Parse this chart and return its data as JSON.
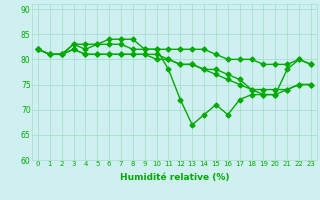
{
  "xlabel": "Humidité relative (%)",
  "xlim": [
    -0.5,
    23.5
  ],
  "ylim": [
    60,
    91
  ],
  "yticks": [
    60,
    65,
    70,
    75,
    80,
    85,
    90
  ],
  "xticks": [
    0,
    1,
    2,
    3,
    4,
    5,
    6,
    7,
    8,
    9,
    10,
    11,
    12,
    13,
    14,
    15,
    16,
    17,
    18,
    19,
    20,
    21,
    22,
    23
  ],
  "background_color": "#cff0f0",
  "grid_color": "#aaddcc",
  "line_color": "#00aa00",
  "marker": "D",
  "markersize": 2.5,
  "linewidth": 1.0,
  "lines": [
    [
      82,
      81,
      81,
      83,
      82,
      83,
      84,
      84,
      84,
      82,
      82,
      78,
      72,
      67,
      69,
      71,
      69,
      72,
      73,
      73,
      73,
      78,
      80,
      79
    ],
    [
      82,
      81,
      81,
      83,
      83,
      83,
      83,
      83,
      82,
      82,
      82,
      82,
      82,
      82,
      82,
      81,
      80,
      80,
      80,
      79,
      79,
      79,
      80,
      79
    ],
    [
      82,
      81,
      81,
      82,
      81,
      81,
      81,
      81,
      81,
      81,
      80,
      80,
      79,
      79,
      78,
      77,
      76,
      75,
      74,
      74,
      74,
      74,
      75,
      75
    ],
    [
      82,
      81,
      81,
      82,
      81,
      81,
      81,
      81,
      81,
      81,
      81,
      80,
      79,
      79,
      78,
      78,
      77,
      76,
      74,
      73,
      73,
      74,
      75,
      75
    ]
  ]
}
